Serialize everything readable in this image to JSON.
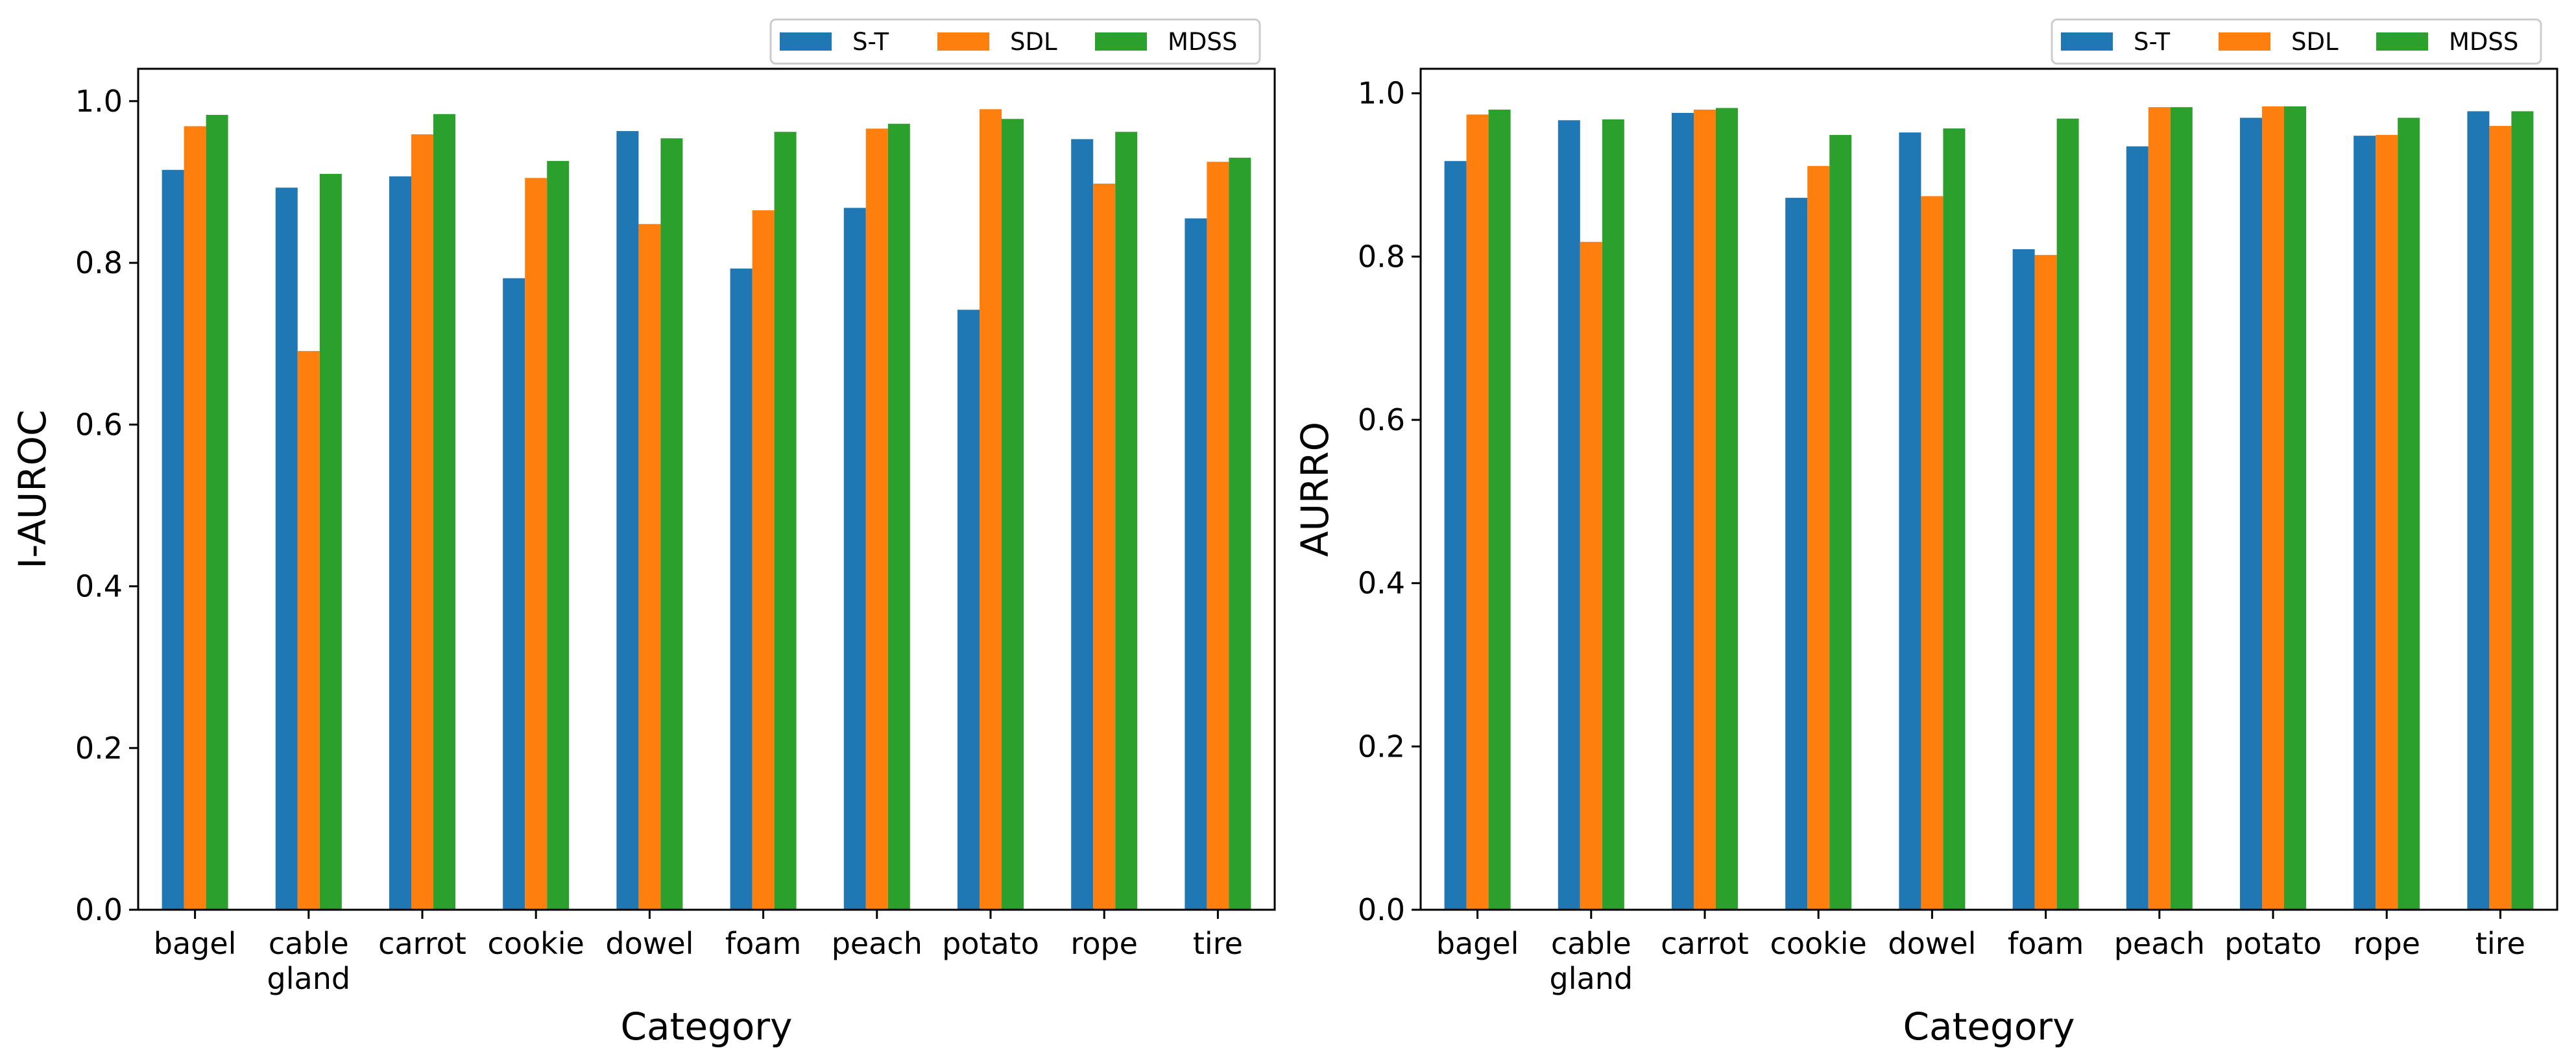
{
  "chart_data": [
    {
      "type": "bar",
      "title": "",
      "xlabel": "Category",
      "ylabel": "I-AUROC",
      "ylim": [
        0,
        1.04
      ],
      "yticks": [
        "0.0",
        "0.2",
        "0.4",
        "0.6",
        "0.8",
        "1.0"
      ],
      "grid": false,
      "legend_position": "top-right, above plot",
      "categories": [
        [
          "bagel"
        ],
        [
          "cable",
          "gland"
        ],
        [
          "carrot"
        ],
        [
          "cookie"
        ],
        [
          "dowel"
        ],
        [
          "foam"
        ],
        [
          "peach"
        ],
        [
          "potato"
        ],
        [
          "rope"
        ],
        [
          "tire"
        ]
      ],
      "series": [
        {
          "name": "S-T",
          "color": "#1f77b4",
          "values": [
            0.915,
            0.893,
            0.907,
            0.781,
            0.963,
            0.793,
            0.868,
            0.742,
            0.953,
            0.855
          ]
        },
        {
          "name": "SDL",
          "color": "#ff7f0e",
          "values": [
            0.969,
            0.691,
            0.959,
            0.905,
            0.848,
            0.865,
            0.966,
            0.99,
            0.898,
            0.925
          ]
        },
        {
          "name": "MDSS",
          "color": "#2ca02c",
          "values": [
            0.983,
            0.91,
            0.984,
            0.926,
            0.954,
            0.962,
            0.972,
            0.978,
            0.962,
            0.93
          ]
        }
      ]
    },
    {
      "type": "bar",
      "title": "",
      "xlabel": "Category",
      "ylabel": "AURRO",
      "ylim": [
        0,
        1.03
      ],
      "yticks": [
        "0.0",
        "0.2",
        "0.4",
        "0.6",
        "0.8",
        "1.0"
      ],
      "grid": false,
      "legend_position": "top-right, above plot",
      "categories": [
        [
          "bagel"
        ],
        [
          "cable",
          "gland"
        ],
        [
          "carrot"
        ],
        [
          "cookie"
        ],
        [
          "dowel"
        ],
        [
          "foam"
        ],
        [
          "peach"
        ],
        [
          "potato"
        ],
        [
          "rope"
        ],
        [
          "tire"
        ]
      ],
      "series": [
        {
          "name": "S-T",
          "color": "#1f77b4",
          "values": [
            0.917,
            0.967,
            0.976,
            0.872,
            0.952,
            0.809,
            0.935,
            0.97,
            0.948,
            0.978
          ]
        },
        {
          "name": "SDL",
          "color": "#ff7f0e",
          "values": [
            0.974,
            0.818,
            0.98,
            0.911,
            0.874,
            0.802,
            0.983,
            0.984,
            0.949,
            0.96
          ]
        },
        {
          "name": "MDSS",
          "color": "#2ca02c",
          "values": [
            0.98,
            0.968,
            0.982,
            0.949,
            0.957,
            0.969,
            0.983,
            0.984,
            0.97,
            0.978
          ]
        }
      ]
    }
  ]
}
